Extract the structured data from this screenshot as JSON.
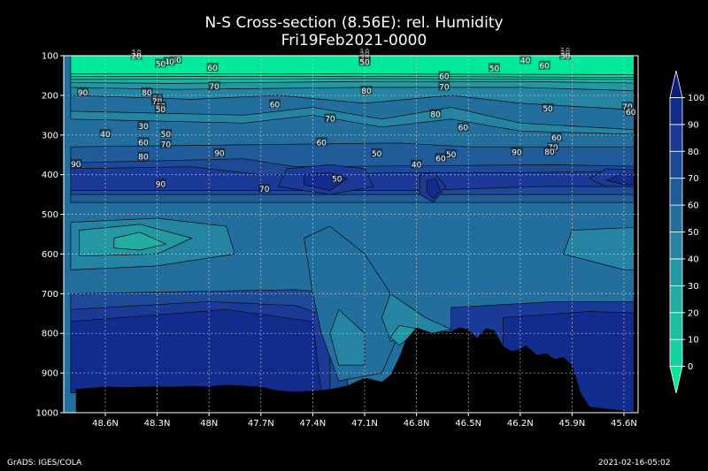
{
  "chart_data": {
    "type": "contour",
    "title": "N-S Cross-section (8.56E): rel. Humidity",
    "subtitle": "Fri19Feb2021-0000",
    "x_ticks": [
      "48.6N",
      "48.3N",
      "48N",
      "47.7N",
      "47.4N",
      "47.1N",
      "46.8N",
      "46.5N",
      "46.2N",
      "45.9N",
      "45.6N"
    ],
    "y_ticks": [
      100,
      200,
      300,
      400,
      500,
      600,
      700,
      800,
      900,
      1000
    ],
    "ylim": [
      100,
      1000
    ],
    "grid": true,
    "colorbar": {
      "levels": [
        0,
        10,
        20,
        30,
        40,
        50,
        60,
        70,
        80,
        90,
        100
      ],
      "colors": [
        "#00e89a",
        "#14d3a0",
        "#1ebfa0",
        "#22aca2",
        "#2398a2",
        "#2484a2",
        "#226f9e",
        "#205b9a",
        "#1d4a96",
        "#1b3a98",
        "#122c8e",
        "#0a1e80"
      ]
    },
    "contour_labels": [
      {
        "v": "10",
        "x": 48.42,
        "p": 92
      },
      {
        "v": "20",
        "x": 48.42,
        "p": 100
      },
      {
        "v": "30",
        "x": 48.19,
        "p": 110
      },
      {
        "v": "40",
        "x": 48.23,
        "p": 115
      },
      {
        "v": "50",
        "x": 48.28,
        "p": 120
      },
      {
        "v": "60",
        "x": 47.98,
        "p": 130
      },
      {
        "v": "10",
        "x": 47.1,
        "p": 90
      },
      {
        "v": "20",
        "x": 47.1,
        "p": 97
      },
      {
        "v": "30",
        "x": 47.1,
        "p": 104
      },
      {
        "v": "40",
        "x": 47.1,
        "p": 109
      },
      {
        "v": "50",
        "x": 47.1,
        "p": 116
      },
      {
        "v": "10",
        "x": 45.94,
        "p": 87
      },
      {
        "v": "20",
        "x": 45.94,
        "p": 93
      },
      {
        "v": "30",
        "x": 45.94,
        "p": 100
      },
      {
        "v": "40",
        "x": 46.17,
        "p": 111
      },
      {
        "v": "60",
        "x": 46.06,
        "p": 125
      },
      {
        "v": "50",
        "x": 46.35,
        "p": 131
      },
      {
        "v": "60",
        "x": 46.64,
        "p": 151
      },
      {
        "v": "70",
        "x": 46.64,
        "p": 178
      },
      {
        "v": "90",
        "x": 48.73,
        "p": 192
      },
      {
        "v": "80",
        "x": 48.36,
        "p": 192
      },
      {
        "v": "70",
        "x": 47.97,
        "p": 177
      },
      {
        "v": "80",
        "x": 47.09,
        "p": 188
      },
      {
        "v": "80",
        "x": 48.3,
        "p": 208
      },
      {
        "v": "70",
        "x": 48.3,
        "p": 215
      },
      {
        "v": "60",
        "x": 48.28,
        "p": 227
      },
      {
        "v": "50",
        "x": 48.28,
        "p": 235
      },
      {
        "v": "60",
        "x": 47.62,
        "p": 222
      },
      {
        "v": "80",
        "x": 46.69,
        "p": 247
      },
      {
        "v": "70",
        "x": 47.3,
        "p": 258
      },
      {
        "v": "60",
        "x": 46.53,
        "p": 281
      },
      {
        "v": "50",
        "x": 46.04,
        "p": 232
      },
      {
        "v": "70",
        "x": 45.58,
        "p": 228
      },
      {
        "v": "60",
        "x": 45.56,
        "p": 242
      },
      {
        "v": "30",
        "x": 48.38,
        "p": 277
      },
      {
        "v": "40",
        "x": 48.6,
        "p": 297
      },
      {
        "v": "50",
        "x": 48.25,
        "p": 297
      },
      {
        "v": "60",
        "x": 48.38,
        "p": 318
      },
      {
        "v": "70",
        "x": 48.25,
        "p": 323
      },
      {
        "v": "60",
        "x": 47.35,
        "p": 318
      },
      {
        "v": "60",
        "x": 45.99,
        "p": 306
      },
      {
        "v": "70",
        "x": 46.01,
        "p": 331
      },
      {
        "v": "80",
        "x": 48.38,
        "p": 354
      },
      {
        "v": "90",
        "x": 47.94,
        "p": 345
      },
      {
        "v": "50",
        "x": 47.03,
        "p": 346
      },
      {
        "v": "50",
        "x": 46.6,
        "p": 348
      },
      {
        "v": "60",
        "x": 46.66,
        "p": 358
      },
      {
        "v": "90",
        "x": 46.22,
        "p": 343
      },
      {
        "v": "80",
        "x": 46.03,
        "p": 342
      },
      {
        "v": "90",
        "x": 48.77,
        "p": 373
      },
      {
        "v": "40",
        "x": 46.8,
        "p": 374
      },
      {
        "v": "50",
        "x": 47.26,
        "p": 410
      },
      {
        "v": "90",
        "x": 48.28,
        "p": 423
      },
      {
        "v": "70",
        "x": 47.68,
        "p": 435
      }
    ],
    "terrain_pressure": [
      [
        48.77,
        940
      ],
      [
        48.7,
        938
      ],
      [
        48.6,
        934
      ],
      [
        48.5,
        936
      ],
      [
        48.4,
        935
      ],
      [
        48.3,
        934
      ],
      [
        48.2,
        935
      ],
      [
        48.1,
        933
      ],
      [
        48.0,
        934
      ],
      [
        47.9,
        930
      ],
      [
        47.8,
        932
      ],
      [
        47.7,
        935
      ],
      [
        47.6,
        944
      ],
      [
        47.5,
        947
      ],
      [
        47.4,
        945
      ],
      [
        47.3,
        941
      ],
      [
        47.2,
        932
      ],
      [
        47.1,
        912
      ],
      [
        47.0,
        922
      ],
      [
        46.95,
        905
      ],
      [
        46.9,
        860
      ],
      [
        46.86,
        815
      ],
      [
        46.8,
        785
      ],
      [
        46.75,
        793
      ],
      [
        46.7,
        800
      ],
      [
        46.65,
        795
      ],
      [
        46.6,
        795
      ],
      [
        46.55,
        785
      ],
      [
        46.5,
        790
      ],
      [
        46.45,
        812
      ],
      [
        46.4,
        788
      ],
      [
        46.35,
        792
      ],
      [
        46.3,
        832
      ],
      [
        46.25,
        845
      ],
      [
        46.2,
        840
      ],
      [
        46.17,
        830
      ],
      [
        46.1,
        855
      ],
      [
        46.05,
        850
      ],
      [
        46.0,
        865
      ],
      [
        45.95,
        860
      ],
      [
        45.9,
        880
      ],
      [
        45.85,
        950
      ],
      [
        45.8,
        985
      ],
      [
        45.7,
        990
      ],
      [
        45.6,
        995
      ],
      [
        45.5,
        1000
      ]
    ]
  },
  "footer": {
    "left": "GrADS: IGES/COLA",
    "right": "2021-02-16-05:02"
  }
}
